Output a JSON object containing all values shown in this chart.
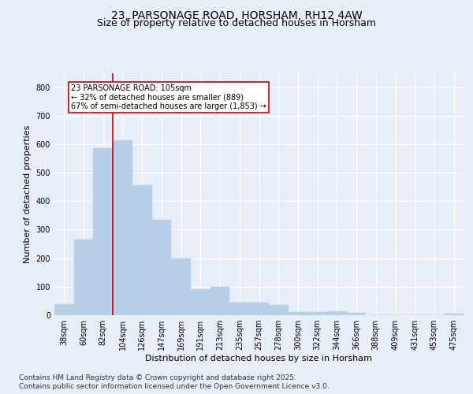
{
  "title": "23, PARSONAGE ROAD, HORSHAM, RH12 4AW",
  "subtitle": "Size of property relative to detached houses in Horsham",
  "xlabel": "Distribution of detached houses by size in Horsham",
  "ylabel": "Number of detached properties",
  "bar_labels": [
    "38sqm",
    "60sqm",
    "82sqm",
    "104sqm",
    "126sqm",
    "147sqm",
    "169sqm",
    "191sqm",
    "213sqm",
    "235sqm",
    "257sqm",
    "278sqm",
    "300sqm",
    "322sqm",
    "344sqm",
    "366sqm",
    "388sqm",
    "409sqm",
    "431sqm",
    "453sqm",
    "475sqm"
  ],
  "bar_values": [
    40,
    265,
    585,
    615,
    455,
    335,
    200,
    90,
    100,
    45,
    45,
    35,
    10,
    12,
    15,
    8,
    0,
    0,
    0,
    0,
    5
  ],
  "bar_color": "#b8cfe8",
  "bar_edge_color": "#b8cfe8",
  "vline_color": "#cc0000",
  "annotation_text": "23 PARSONAGE ROAD: 105sqm\n← 32% of detached houses are smaller (889)\n67% of semi-detached houses are larger (1,853) →",
  "annotation_box_color": "#ffffff",
  "annotation_box_edge": "#cc0000",
  "ylim": [
    0,
    850
  ],
  "yticks": [
    0,
    100,
    200,
    300,
    400,
    500,
    600,
    700,
    800
  ],
  "background_color": "#e8eef8",
  "plot_bg_color": "#e8eef8",
  "grid_color": "#ffffff",
  "footer_line1": "Contains HM Land Registry data © Crown copyright and database right 2025.",
  "footer_line2": "Contains public sector information licensed under the Open Government Licence v3.0.",
  "title_fontsize": 10,
  "subtitle_fontsize": 9,
  "label_fontsize": 8,
  "tick_fontsize": 7,
  "footer_fontsize": 6.5
}
